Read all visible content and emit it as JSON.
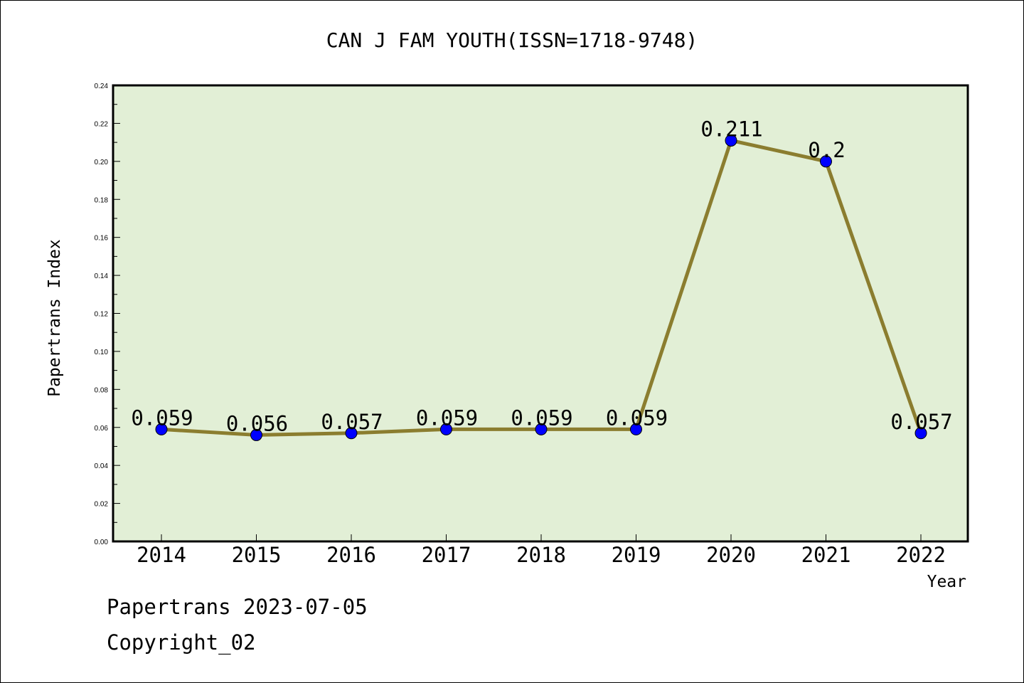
{
  "chart_data": {
    "type": "line",
    "title": "CAN J FAM YOUTH(ISSN=1718-9748)",
    "xlabel": "Year",
    "ylabel": "Papertrans Index",
    "categories": [
      "2014",
      "2015",
      "2016",
      "2017",
      "2018",
      "2019",
      "2020",
      "2021",
      "2022"
    ],
    "series": [
      {
        "values": [
          0.059,
          0.056,
          0.057,
          0.059,
          0.059,
          0.059,
          0.211,
          0.2,
          0.057
        ],
        "labels": [
          "0.059",
          "0.056",
          "0.057",
          "0.059",
          "0.059",
          "0.059",
          "0.211",
          "0.2",
          "0.057"
        ]
      }
    ],
    "ylim": [
      0,
      0.24
    ],
    "yticks": [
      "0.00",
      "0.02",
      "0.04",
      "0.06",
      "0.08",
      "0.10",
      "0.12",
      "0.14",
      "0.16",
      "0.18",
      "0.20",
      "0.22",
      "0.24"
    ],
    "grid": false,
    "colors": {
      "plot_background": "#e2efd6",
      "line": "#8b7d2f",
      "marker": "#0000ff"
    }
  },
  "footer": {
    "line1": "Papertrans 2023-07-05",
    "line2": "Copyright_02"
  }
}
